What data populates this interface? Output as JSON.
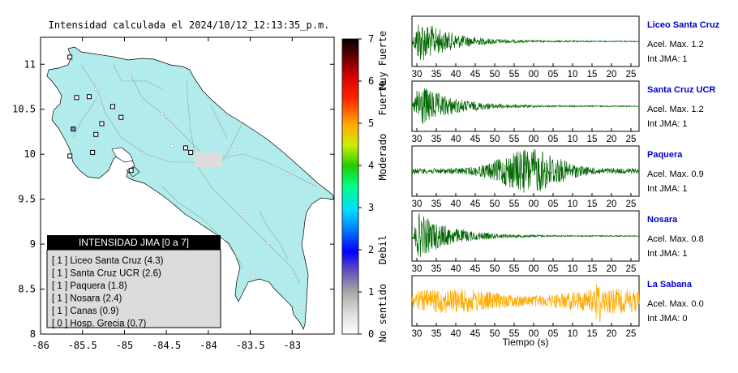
{
  "map": {
    "title": "Intensidad calculada el 2024/10/12_12:13:35_p.m.",
    "x_ticks": [
      "-86",
      "-85.5",
      "-85",
      "-84.5",
      "-84",
      "-83.5",
      "-83"
    ],
    "y_ticks": [
      "11",
      "10.5",
      "10",
      "9.5",
      "9",
      "8.5",
      "8"
    ],
    "xlim": [
      -86,
      -82.5
    ],
    "ylim": [
      8,
      11.3
    ],
    "land_color": "#b2ebeb",
    "stations": [
      {
        "lon": -85.65,
        "lat": 11.08,
        "color": "#ffffff"
      },
      {
        "lon": -85.57,
        "lat": 10.63,
        "color": "#ffffff"
      },
      {
        "lon": -85.42,
        "lat": 10.64,
        "color": "#ffffff"
      },
      {
        "lon": -85.14,
        "lat": 10.53,
        "color": "#ffffff"
      },
      {
        "lon": -85.04,
        "lat": 10.41,
        "color": "#ffffff"
      },
      {
        "lon": -85.27,
        "lat": 10.34,
        "color": "#ffffff"
      },
      {
        "lon": -85.61,
        "lat": 10.28,
        "color": "#8888dd"
      },
      {
        "lon": -85.34,
        "lat": 10.22,
        "color": "#ffffff"
      },
      {
        "lon": -85.38,
        "lat": 10.02,
        "color": "#ffffff"
      },
      {
        "lon": -85.65,
        "lat": 9.98,
        "color": "#ffffff"
      },
      {
        "lon": -84.92,
        "lat": 9.82,
        "color": "#ffffff"
      },
      {
        "lon": -84.27,
        "lat": 10.07,
        "color": "#ffffff"
      },
      {
        "lon": -84.21,
        "lat": 10.02,
        "color": "#ffffff"
      }
    ]
  },
  "colorbar": {
    "ticks": [
      "0",
      "1",
      "2",
      "3",
      "4",
      "5",
      "6",
      "7"
    ],
    "labels": [
      "No sentido",
      "Debil",
      "Moderado",
      "Fuerte",
      "Muy Fuerte"
    ],
    "colors": [
      "#ffffff",
      "#aaaaaa",
      "#5533aa",
      "#0000ff",
      "#00ccff",
      "#00ff66",
      "#33cc00",
      "#ccee00",
      "#ffaa00",
      "#ff3300",
      "#cc0000",
      "#660000",
      "#000000"
    ]
  },
  "legend": {
    "title": "INTENSIDAD JMA [0 a 7]",
    "items": [
      "[ 1 ] Liceo Santa Cruz (4.3)",
      "[ 1 ] Santa Cruz UCR (2.6)",
      "[ 1 ] Paquera (1.8)",
      "[ 1 ] Nosara (2.4)",
      "[ 1 ] Canas (0.9)",
      "[ 0 ] Hosp. Grecia (0.7)"
    ]
  },
  "chart_data": {
    "type": "line",
    "title": "",
    "xlabel": "Tiempo (s)",
    "x_ticks": [
      "30",
      "35",
      "40",
      "45",
      "50",
      "55",
      "00",
      "05",
      "10",
      "15",
      "20",
      "25"
    ],
    "series": [
      {
        "name": "Liceo Santa Cruz",
        "max_label": "Acel. Max. 1.2",
        "jma_label": "Int JMA: 1",
        "color": "#006600",
        "shape": "early"
      },
      {
        "name": "Santa Cruz UCR",
        "max_label": "Acel. Max. 1.2",
        "jma_label": "Int JMA: 1",
        "color": "#006600",
        "shape": "early"
      },
      {
        "name": "Paquera",
        "max_label": "Acel. Max. 0.9",
        "jma_label": "Int JMA: 1",
        "color": "#006600",
        "shape": "middle"
      },
      {
        "name": "Nosara",
        "max_label": "Acel. Max. 0.8",
        "jma_label": "Int JMA: 1",
        "color": "#006600",
        "shape": "early"
      },
      {
        "name": "La Sabana",
        "max_label": "Acel. Max. 0.0",
        "jma_label": "Int JMA: 0",
        "color": "#ffaa00",
        "shape": "noise"
      }
    ]
  }
}
